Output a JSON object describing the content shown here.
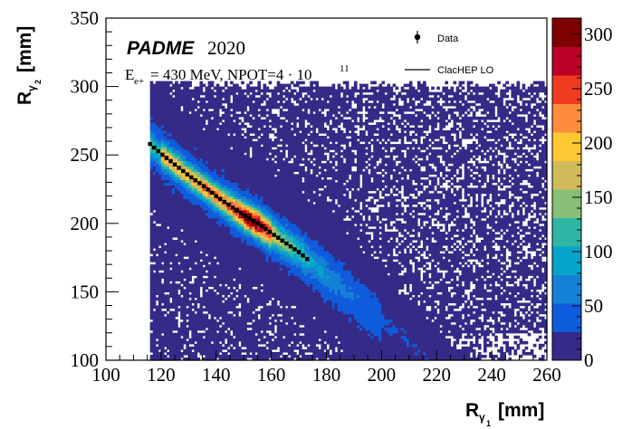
{
  "chart_data": {
    "type": "heatmap",
    "title_experiment": "PADME",
    "title_year": "2020",
    "beam_energy_label_prefix": "E",
    "beam_energy_label_sub": "e+",
    "beam_energy_value": "= 430 MeV, NPOT=4 · 10",
    "beam_energy_exponent": "11",
    "xlabel_main": "R",
    "xlabel_sub": "γ",
    "xlabel_subsub": "1",
    "xlabel_unit": "[mm]",
    "ylabel_main": "R",
    "ylabel_sub": "γ",
    "ylabel_subsub": "2",
    "ylabel_unit": "[mm]",
    "xlim": [
      100,
      260
    ],
    "ylim": [
      100,
      350
    ],
    "x_ticks": [
      "100",
      "120",
      "140",
      "160",
      "180",
      "200",
      "220",
      "240",
      "260"
    ],
    "y_ticks": [
      "100",
      "150",
      "200",
      "250",
      "300",
      "350"
    ],
    "z_range": [
      0,
      315
    ],
    "z_ticks": [
      "0",
      "50",
      "100",
      "150",
      "200",
      "250",
      "300"
    ],
    "colormap": [
      "#352a87",
      "#0f5cdd",
      "#1481d6",
      "#06a4ca",
      "#2eb7a4",
      "#87bf77",
      "#d1bb59",
      "#fec832",
      "#fd8d3c",
      "#f03b20",
      "#bd0026",
      "#7f0000"
    ],
    "legend": [
      {
        "label": "Data",
        "marker": "point-with-error"
      },
      {
        "label": "ClacHEP LO",
        "marker": "line"
      }
    ],
    "band_curve": {
      "name": "Data",
      "x": [
        116,
        120,
        125,
        130,
        135,
        140,
        145,
        150,
        155,
        160,
        165,
        170,
        173
      ],
      "y": [
        258,
        251,
        243,
        235,
        228,
        220,
        213,
        206,
        200,
        193,
        186,
        179,
        174
      ]
    },
    "peak_region": {
      "x": [
        148,
        158
      ],
      "y": [
        190,
        200
      ],
      "value": 315
    }
  }
}
